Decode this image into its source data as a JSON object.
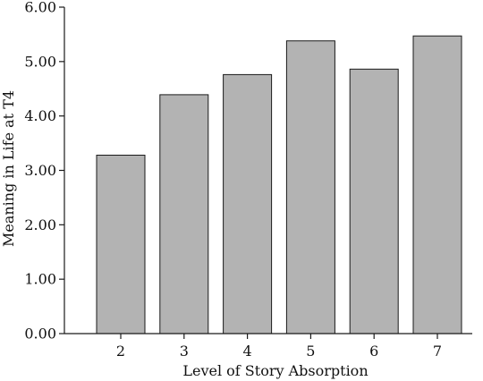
{
  "chart_data": {
    "type": "bar",
    "categories": [
      "2",
      "3",
      "4",
      "5",
      "6",
      "7"
    ],
    "values": [
      3.28,
      4.39,
      4.76,
      5.38,
      4.86,
      5.47
    ],
    "title": "",
    "xlabel": "Level of Story Absorption",
    "ylabel": "Meaning in Life at T4",
    "ylim": [
      0,
      6
    ],
    "yticks": [
      "0.00",
      "1.00",
      "2.00",
      "3.00",
      "4.00",
      "5.00",
      "6.00"
    ],
    "grid": false,
    "legend": "none",
    "colors": {
      "bar_fill": "#b3b3b3",
      "bar_stroke": "#1a1a1a",
      "axis": "#1a1a1a",
      "text": "#111111"
    }
  }
}
